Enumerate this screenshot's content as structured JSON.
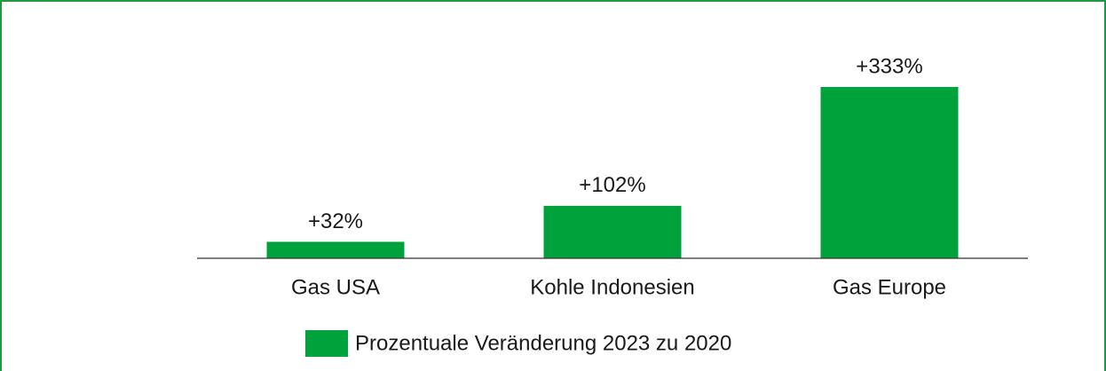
{
  "chart_data": {
    "type": "bar",
    "categories": [
      "Gas USA",
      "Kohle Indonesien",
      "Gas Europe"
    ],
    "series": [
      {
        "name": "Prozentuale Veränderung 2023 zu 2020",
        "color": "#00a23b",
        "values": [
          32,
          102,
          333
        ],
        "value_labels": [
          "+32%",
          "+102%",
          "+333%"
        ]
      }
    ]
  }
}
